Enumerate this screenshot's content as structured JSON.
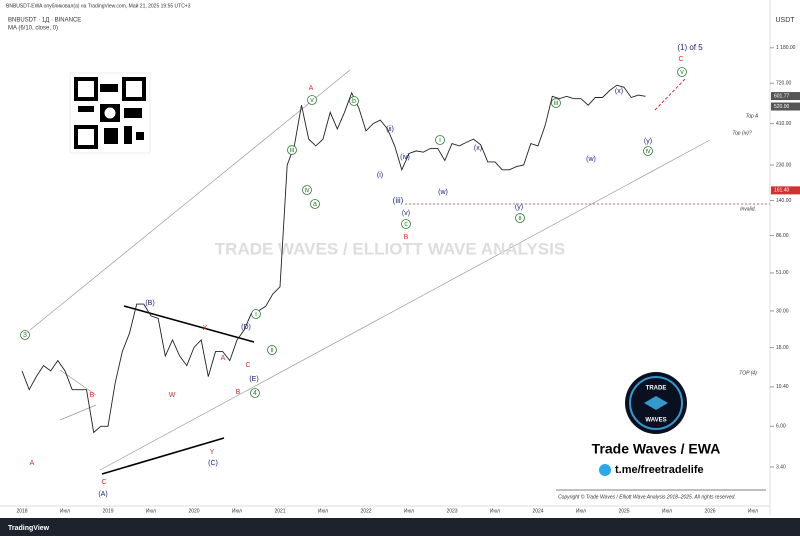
{
  "header": {
    "published": "BNBUSDT-EWA опубликовал(а) на TradingView.com, Май 21, 2025 19:55 UTC+3",
    "symbol": "BNBUSDT · 1Д · BINANCE",
    "indicator": "MA (6/10, close, 0)"
  },
  "chart_data": {
    "type": "line",
    "unit": "USDT",
    "log_scale": true,
    "x": [
      "2018-01",
      "2018-02",
      "2018-03",
      "2018-04",
      "2018-05",
      "2018-06",
      "2018-07",
      "2018-08",
      "2018-09",
      "2018-10",
      "2018-11",
      "2018-12",
      "2019-01",
      "2019-02",
      "2019-03",
      "2019-04",
      "2019-05",
      "2019-06",
      "2019-07",
      "2019-08",
      "2019-09",
      "2019-10",
      "2019-11",
      "2019-12",
      "2020-01",
      "2020-02",
      "2020-03",
      "2020-04",
      "2020-05",
      "2020-06",
      "2020-07",
      "2020-08",
      "2020-09",
      "2020-10",
      "2020-11",
      "2020-12",
      "2021-01",
      "2021-02",
      "2021-03",
      "2021-04",
      "2021-05",
      "2021-06",
      "2021-07",
      "2021-08",
      "2021-09",
      "2021-10",
      "2021-11",
      "2021-12",
      "2022-01",
      "2022-02",
      "2022-03",
      "2022-04",
      "2022-05",
      "2022-06",
      "2022-07",
      "2022-08",
      "2022-09",
      "2022-10",
      "2022-11",
      "2022-12",
      "2023-01",
      "2023-02",
      "2023-03",
      "2023-04",
      "2023-05",
      "2023-06",
      "2023-07",
      "2023-08",
      "2023-09",
      "2023-10",
      "2023-11",
      "2023-12",
      "2024-01",
      "2024-02",
      "2024-03",
      "2024-04",
      "2024-05",
      "2024-06",
      "2024-07",
      "2024-08",
      "2024-09",
      "2024-10",
      "2024-11",
      "2024-12",
      "2025-01",
      "2025-02",
      "2025-03",
      "2025-04"
    ],
    "series": [
      {
        "name": "BNBUSDT",
        "color": "#222222",
        "values": [
          13,
          10,
          12,
          14,
          13,
          15,
          13,
          10,
          10,
          10,
          5.5,
          6,
          6,
          11,
          17,
          22,
          33,
          33,
          28,
          27,
          16,
          20,
          16,
          14,
          18,
          20,
          12,
          17,
          17,
          15,
          20,
          23,
          29,
          30,
          32,
          38,
          42,
          230,
          300,
          530,
          330,
          300,
          330,
          480,
          380,
          480,
          630,
          510,
          370,
          410,
          430,
          380,
          300,
          215,
          270,
          280,
          275,
          290,
          290,
          245,
          310,
          300,
          315,
          330,
          305,
          240,
          240,
          215,
          215,
          225,
          230,
          310,
          300,
          400,
          600,
          580,
          600,
          580,
          580,
          530,
          590,
          590,
          650,
          700,
          680,
          590,
          610,
          600
        ]
      }
    ],
    "ylim": [
      2,
      2000
    ],
    "yticks": [
      {
        "value": 1180,
        "label": "1 180.00"
      },
      {
        "value": 720,
        "label": "720.00"
      },
      {
        "value": 410,
        "label": "410.00"
      },
      {
        "value": 230,
        "label": "230.00"
      },
      {
        "value": 140,
        "label": "140.00"
      },
      {
        "value": 86,
        "label": "86.00"
      },
      {
        "value": 51,
        "label": "51.00"
      },
      {
        "value": 30,
        "label": "30.00"
      },
      {
        "value": 18,
        "label": "18.00"
      },
      {
        "value": 10.4,
        "label": "10.40"
      },
      {
        "value": 6,
        "label": "6.00"
      },
      {
        "value": 3.4,
        "label": "3.40"
      }
    ],
    "xticks": [
      "2018",
      "Июл",
      "2019",
      "Июл",
      "2020",
      "Июл",
      "2021",
      "Июл",
      "2022",
      "Июл",
      "2023",
      "Июл",
      "2024",
      "Июл",
      "2025",
      "Июл",
      "2026",
      "Июл"
    ],
    "price_labels": [
      {
        "value": 601.77,
        "label": "601.77",
        "color": "#555555"
      },
      {
        "value": 520,
        "label": "520.00",
        "color": "#555555"
      },
      {
        "value": 161.4,
        "label": "161.40",
        "color": "#d32f2f"
      }
    ],
    "levels": [
      {
        "text": "Top A"
      },
      {
        "text": "Top (iv)?"
      },
      {
        "text": "Invalid."
      },
      {
        "text": "TOP (4)"
      }
    ],
    "annotations": [
      {
        "text": "3",
        "color": "#2e7d32"
      },
      {
        "text": "A",
        "color": "#d32f2f"
      },
      {
        "text": "B",
        "color": "#d32f2f"
      },
      {
        "text": "C",
        "color": "#d32f2f"
      },
      {
        "text": "(A)",
        "color": "#1a237e"
      },
      {
        "text": "(B)",
        "color": "#1a237e"
      },
      {
        "text": "W",
        "color": "#d32f2f"
      },
      {
        "text": "X",
        "color": "#d32f2f"
      },
      {
        "text": "Y",
        "color": "#d32f2f"
      },
      {
        "text": "(C)",
        "color": "#1a237e"
      },
      {
        "text": "A",
        "color": "#d32f2f"
      },
      {
        "text": "B",
        "color": "#d32f2f"
      },
      {
        "text": "C",
        "color": "#d32f2f"
      },
      {
        "text": "(D)",
        "color": "#1a237e"
      },
      {
        "text": "(E)",
        "color": "#1a237e"
      },
      {
        "text": "4",
        "color": "#2e7d32"
      },
      {
        "text": "i",
        "color": "#2e7d32"
      },
      {
        "text": "ii",
        "color": "#2e7d32"
      },
      {
        "text": "iii",
        "color": "#2e7d32"
      },
      {
        "text": "iv",
        "color": "#2e7d32"
      },
      {
        "text": "v",
        "color": "#2e7d32"
      },
      {
        "text": "A",
        "color": "#d32f2f"
      },
      {
        "text": "a",
        "color": "#2e7d32"
      },
      {
        "text": "b",
        "color": "#2e7d32"
      },
      {
        "text": "c",
        "color": "#2e7d32"
      },
      {
        "text": "(v)",
        "color": "#1a237e"
      },
      {
        "text": "B",
        "color": "#d32f2f"
      },
      {
        "text": "(i)",
        "color": "#1a237e"
      },
      {
        "text": "(ii)",
        "color": "#1a237e"
      },
      {
        "text": "(iii)",
        "color": "#1a237e"
      },
      {
        "text": "(iv)",
        "color": "#1a237e"
      },
      {
        "text": "i",
        "color": "#2e7d32"
      },
      {
        "text": "(w)",
        "color": "#1a237e"
      },
      {
        "text": "(x)",
        "color": "#1a237e"
      },
      {
        "text": "(y)",
        "color": "#1a237e"
      },
      {
        "text": "ii",
        "color": "#2e7d32"
      },
      {
        "text": "iii",
        "color": "#2e7d32"
      },
      {
        "text": "(w)",
        "color": "#1a237e"
      },
      {
        "text": "(x)",
        "color": "#1a237e"
      },
      {
        "text": "(y)",
        "color": "#1a237e"
      },
      {
        "text": "iv",
        "color": "#2e7d32"
      },
      {
        "text": "v",
        "color": "#2e7d32"
      },
      {
        "text": "C",
        "color": "#d32f2f"
      },
      {
        "text": "(1) of 5",
        "color": "#1a237e"
      }
    ],
    "watermark": "TRADE WAVES / ELLIOTT WAVE ANALYSIS"
  },
  "brand": {
    "logo": "TRADE",
    "logo2": "WAVES",
    "name": "Trade Waves / EWA",
    "telegram": "t.me/freetradelife",
    "copyright": "Copyright © Trade Waves / Elliott Wave Analysis 2018–2025. All rights reserved.",
    "footer": "TradingView"
  }
}
